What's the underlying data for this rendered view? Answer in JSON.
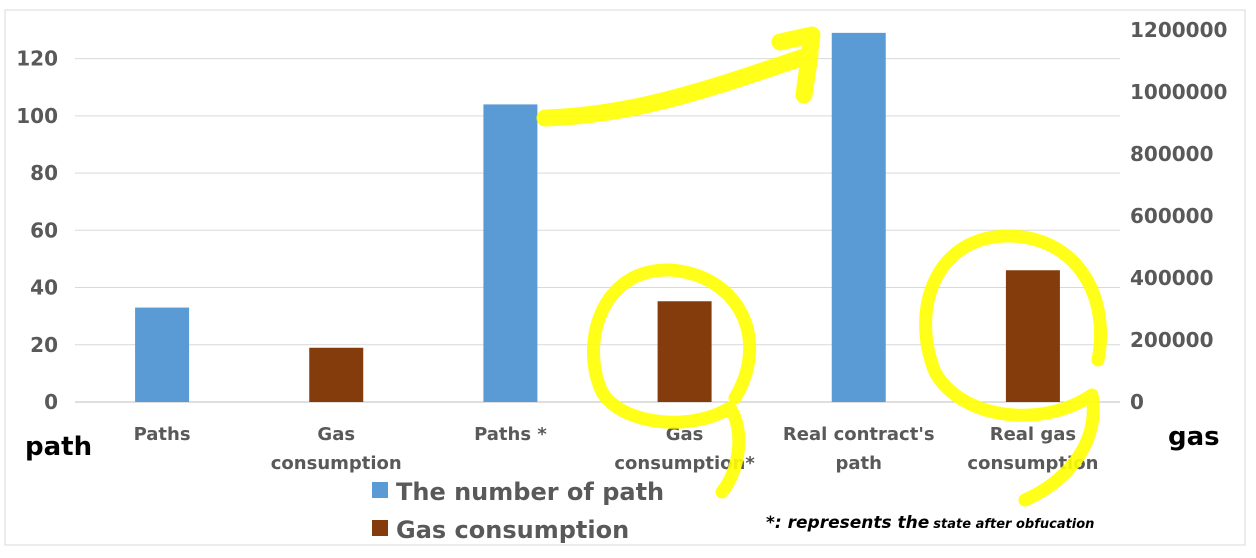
{
  "chart_data": {
    "type": "bar",
    "categories": [
      [
        "Paths"
      ],
      [
        "Gas",
        "consumption"
      ],
      [
        "Paths *"
      ],
      [
        "Gas",
        "consumption*"
      ],
      [
        "Real contract's",
        "path"
      ],
      [
        "Real gas",
        "consumption"
      ]
    ],
    "series": [
      {
        "name": "The number of path",
        "axis": "left",
        "color": "#5b9bd5",
        "values": [
          33,
          null,
          104,
          null,
          129,
          null
        ]
      },
      {
        "name": "Gas consumption",
        "axis": "right",
        "color": "#843c0c",
        "values": [
          null,
          175000,
          null,
          325000,
          null,
          425000
        ]
      }
    ],
    "ylabel": "path",
    "y2label": "gas",
    "ylim": [
      0,
      130
    ],
    "y2lim": [
      0,
      1200000
    ],
    "yticks": [
      0,
      20,
      40,
      60,
      80,
      100,
      120
    ],
    "y2ticks": [
      0,
      200000,
      400000,
      600000,
      800000,
      1000000,
      1200000
    ],
    "grid": true,
    "legend_position": "bottom",
    "annotations": {
      "note_main": "*: represents the",
      "note_small": "state after obfucation",
      "highlight_color": "#ffff00",
      "highlight_meaning": [
        "arrow from Paths * to Real contract's path",
        "circle around Gas consumption*",
        "circle around Real gas consumption"
      ]
    }
  }
}
